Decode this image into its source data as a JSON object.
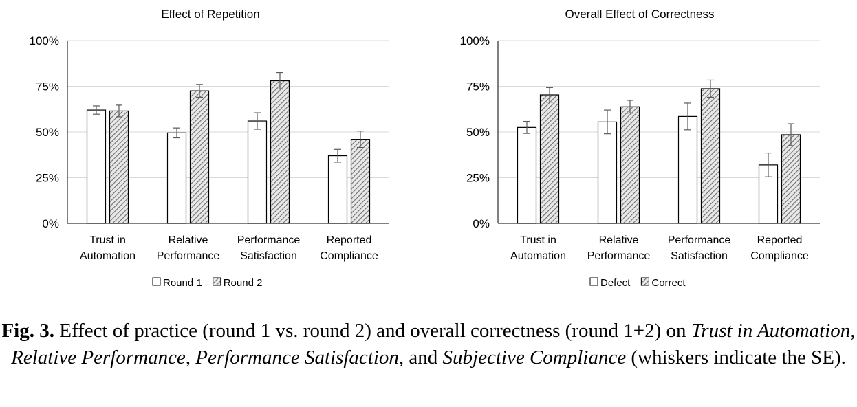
{
  "chart_data": [
    {
      "type": "bar",
      "title": "Effect of Repetition",
      "categories": [
        [
          "Trust in",
          "Automation"
        ],
        [
          "Relative",
          "Performance"
        ],
        [
          "Performance",
          "Satisfaction"
        ],
        [
          "Reported",
          "Compliance"
        ]
      ],
      "ylim": [
        0,
        100
      ],
      "yticks": [
        "0%",
        "25%",
        "50%",
        "75%",
        "100%"
      ],
      "ytick_values": [
        0,
        25,
        50,
        75,
        100
      ],
      "grid": true,
      "legend_position": "bottom",
      "series": [
        {
          "name": "Round 1",
          "pattern": "plain",
          "values": [
            62,
            49.5,
            56,
            37
          ],
          "errors": [
            2.3,
            2.7,
            4.5,
            3.5
          ]
        },
        {
          "name": "Round 2",
          "pattern": "hatched",
          "values": [
            61.5,
            72.5,
            78,
            46
          ],
          "errors": [
            3.2,
            3.5,
            4.5,
            4.5
          ]
        }
      ]
    },
    {
      "type": "bar",
      "title": "Overall Effect of Correctness",
      "categories": [
        [
          "Trust in",
          "Automation"
        ],
        [
          "Relative",
          "Performance"
        ],
        [
          "Performance",
          "Satisfaction"
        ],
        [
          "Reported",
          "Compliance"
        ]
      ],
      "ylim": [
        0,
        100
      ],
      "yticks": [
        "0%",
        "25%",
        "50%",
        "75%",
        "100%"
      ],
      "ytick_values": [
        0,
        25,
        50,
        75,
        100
      ],
      "grid": true,
      "legend_position": "bottom",
      "series": [
        {
          "name": "Defect",
          "pattern": "plain",
          "values": [
            52.5,
            55.5,
            58.5,
            32
          ],
          "errors": [
            3.3,
            6.5,
            7.3,
            6.5
          ]
        },
        {
          "name": "Correct",
          "pattern": "hatched",
          "values": [
            70.3,
            63.8,
            73.7,
            48.5
          ],
          "errors": [
            4,
            3.5,
            4.7,
            6
          ]
        }
      ]
    }
  ],
  "caption": {
    "label": "Fig. 3.",
    "part1": " Effect of practice (round 1 vs. round 2) and overall correctness (round 1+2) on ",
    "term1": "Trust in Automation",
    "sep1": ", ",
    "term2": "Relative Performance, Performance Satisfaction",
    "sep2": ", and ",
    "term3": "Subjective Compliance",
    "part2": " (whiskers indicate the SE)."
  },
  "colors": {
    "bar_fill": "#ffffff",
    "bar_stroke": "#000000",
    "hatch": "#7a7a7a",
    "hatch_bg": "#e8e8e8",
    "grid": "#d9d9d9",
    "axis": "#000000",
    "whisker": "#5a5a5a",
    "text": "#000000"
  }
}
